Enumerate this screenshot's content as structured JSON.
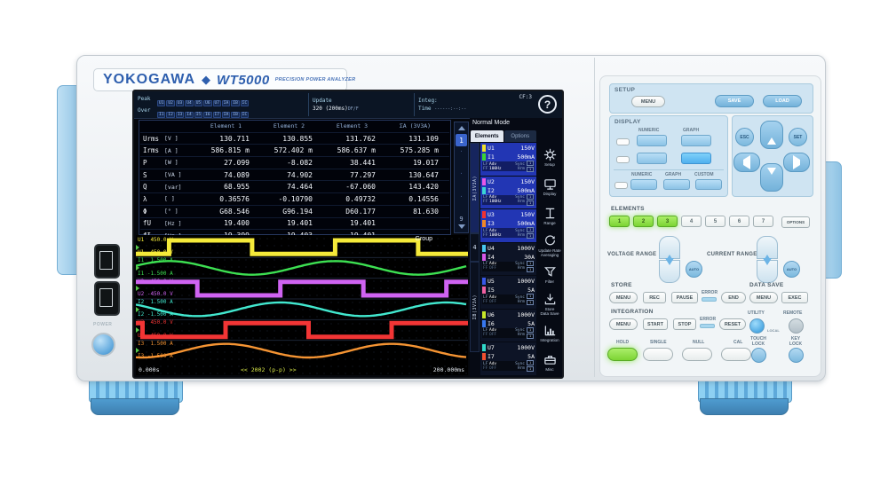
{
  "device": {
    "brand": "YOKOGAWA",
    "model": "WT5000",
    "model_desc": "PRECISION POWER ANALYZER",
    "power_label": "POWER"
  },
  "screen": {
    "status": {
      "peak_label": "Peak",
      "peak_items": [
        "U1",
        "U2",
        "U3",
        "U4",
        "U5",
        "U6",
        "U7",
        "ΣA",
        "ΣB",
        "ΣC"
      ],
      "over_label": "Over",
      "over_items": [
        "I1",
        "I2",
        "I3",
        "I4",
        "I5",
        "I6",
        "I7",
        "ΣA",
        "ΣB",
        "ΣC"
      ],
      "update_label": "Update",
      "update_value": "320 (200ms)",
      "update_suffix": "DF/F",
      "integ_label": "Integ:",
      "time_label": "Time",
      "time_value": "------:--:--",
      "cf": "CF:3",
      "help": "?"
    },
    "mode": "Normal Mode",
    "tabs": [
      {
        "label": "Elements",
        "active": true
      },
      {
        "label": "Options",
        "active": false
      }
    ],
    "pager": {
      "current": "1",
      "last": "9"
    },
    "groups": {
      "a": "ΣA(3V3A)",
      "el4": "4",
      "b": "ΣB(3V3A)"
    },
    "table": {
      "headers": [
        "Element 1",
        "Element 2",
        "Element 3",
        "ΣA (3V3A)"
      ],
      "rows": [
        {
          "name": "Urms",
          "unit": "[V  ]",
          "values": [
            "130.711",
            "130.855",
            "131.762",
            "131.109"
          ]
        },
        {
          "name": "Irms",
          "unit": "[A  ]",
          "values": [
            "586.815 m",
            "572.402 m",
            "586.637 m",
            "575.285 m"
          ]
        },
        {
          "name": "P",
          "unit": "[W  ]",
          "values": [
            "27.099",
            "-8.082",
            "38.441",
            "19.017"
          ]
        },
        {
          "name": "S",
          "unit": "[VA ]",
          "values": [
            "74.089",
            "74.902",
            "77.297",
            "130.647"
          ]
        },
        {
          "name": "Q",
          "unit": "[var]",
          "values": [
            "68.955",
            "74.464",
            "-67.060",
            "143.420"
          ]
        },
        {
          "name": "λ",
          "unit": "[   ]",
          "values": [
            "0.36576",
            "-0.10790",
            "0.49732",
            "0.14556"
          ]
        },
        {
          "name": "Φ",
          "unit": "[°  ]",
          "values": [
            "G68.546",
            "G96.194",
            "D60.177",
            "81.630"
          ]
        },
        {
          "name": "fU",
          "unit": "[Hz ]",
          "values": [
            "19.400",
            "19.401",
            "19.401",
            ""
          ]
        },
        {
          "name": "fI",
          "unit": "[Hz ]",
          "values": [
            "19.399",
            "19.403",
            "19.401",
            ""
          ]
        }
      ]
    },
    "element_labels": {
      "lf": "LF",
      "ff": "FF",
      "adv": "Adv",
      "sync": "Sync",
      "hrm": "Hrm"
    },
    "elements": [
      {
        "num": "1",
        "u": "U1",
        "u_range": "150V",
        "u_color": "#f0e12e",
        "i": "I1",
        "i_range": "500mA",
        "i_color": "#3bd435",
        "freq": "100Hz",
        "badge": "1",
        "selected": true
      },
      {
        "num": "2",
        "u": "U2",
        "u_range": "150V",
        "u_color": "#e858e8",
        "i": "I2",
        "i_range": "500mA",
        "i_color": "#3ad4d4",
        "freq": "100Hz",
        "badge": "1",
        "selected": true
      },
      {
        "num": "3",
        "u": "U3",
        "u_range": "150V",
        "u_color": "#f03232",
        "i": "I3",
        "i_range": "500mA",
        "i_color": "#f08828",
        "freq": "100Hz",
        "badge": "1",
        "selected": true
      },
      {
        "num": "4",
        "u": "U4",
        "u_range": "1000V",
        "u_color": "#48c8f0",
        "i": "I4",
        "i_range": "30A",
        "i_color": "#d858e8",
        "freq": "OFF",
        "badge": "1",
        "selected": false
      },
      {
        "num": "5",
        "u": "U5",
        "u_range": "1000V",
        "u_color": "#3858e8",
        "i": "I5",
        "i_range": "5A",
        "i_color": "#f060a0",
        "freq": "OFF",
        "badge": "1",
        "selected": false
      },
      {
        "num": "6",
        "u": "U6",
        "u_range": "1000V",
        "u_color": "#c8e828",
        "i": "I6",
        "i_range": "5A",
        "i_color": "#3878f0",
        "freq": "OFF",
        "badge": "1",
        "selected": false
      },
      {
        "num": "7",
        "u": "U7",
        "u_range": "1000V",
        "u_color": "#30d8c8",
        "i": "I7",
        "i_range": "5A",
        "i_color": "#f05030",
        "freq": "OFF",
        "badge": "1",
        "selected": false
      }
    ],
    "icon_menu": [
      {
        "icon": "gear",
        "lines": [
          "Setup"
        ]
      },
      {
        "icon": "display",
        "lines": [
          "Display"
        ]
      },
      {
        "icon": "range",
        "lines": [
          "Range"
        ]
      },
      {
        "icon": "update",
        "lines": [
          "Update Rate",
          "Averaging"
        ]
      },
      {
        "icon": "filter",
        "lines": [
          "Filter"
        ]
      },
      {
        "icon": "store",
        "lines": [
          "Store",
          "Data Save"
        ]
      },
      {
        "icon": "integration",
        "lines": [
          "Integration"
        ]
      },
      {
        "icon": "misc",
        "lines": [
          "Misc"
        ]
      }
    ],
    "waveform": {
      "group_label": "Group",
      "time_start": "0.000s",
      "time_end": "200.000ms",
      "compress": "<< 2002 (p-p) >>",
      "channels": [
        {
          "name": "U1",
          "type": "square",
          "color": "#f5ea3a",
          "label_top": "U1  450.0 V",
          "label_bottom": "U1 -450.0 V",
          "phase": 0.3,
          "cycles": 2
        },
        {
          "name": "I1",
          "type": "sine",
          "color": "#3de052",
          "label_top": "I1  1.500 A",
          "label_bottom": "I1 -1.500 A",
          "phase": 0.05,
          "cycles": 2
        },
        {
          "name": "U2",
          "type": "square",
          "color": "#cf63f2",
          "label_top": "U2  450.0 V",
          "label_bottom": "U2 -450.0 V",
          "phase": 0.63,
          "cycles": 2
        },
        {
          "name": "I2",
          "type": "sine",
          "color": "#42e8cf",
          "label_top": "I2  1.500 A",
          "label_bottom": "I2 -1.500 A",
          "phase": 0.38,
          "cycles": 2
        },
        {
          "name": "U3",
          "type": "square",
          "color": "#f23535",
          "label_top": "U3  450.0 V",
          "label_bottom": "U3 -450.0 V",
          "phase": 0.96,
          "cycles": 2
        },
        {
          "name": "I3",
          "type": "sine",
          "color": "#f59433",
          "label_top": "I3  1.500 A",
          "label_bottom": "I3 -1.500 A",
          "phase": 0.71,
          "cycles": 2
        }
      ]
    }
  },
  "panel": {
    "setup": {
      "title": "SETUP",
      "menu": "MENU",
      "save": "SAVE",
      "load": "LOAD"
    },
    "display": {
      "title": "DISPLAY",
      "numeric": "NUMERIC",
      "graph": "GRAPH",
      "custom": "CUSTOM"
    },
    "nav": {
      "esc": "ESC",
      "set": "SET"
    },
    "elements": {
      "title": "ELEMENTS",
      "buttons": [
        "1",
        "2",
        "3",
        "4",
        "5",
        "6",
        "7"
      ],
      "options": "OPTIONS",
      "lit_count": 3
    },
    "voltage_range": "VOLTAGE RANGE",
    "current_range": "CURRENT RANGE",
    "auto": "AUTO",
    "store": {
      "title": "STORE",
      "menu": "MENU",
      "rec": "REC",
      "pause": "PAUSE",
      "error": "ERROR",
      "end": "END"
    },
    "data_save": {
      "title": "DATA SAVE",
      "menu": "MENU",
      "exec": "EXEC"
    },
    "integration": {
      "title": "INTEGRATION",
      "menu": "MENU",
      "start": "START",
      "stop": "STOP",
      "error": "ERROR",
      "reset": "RESET"
    },
    "utility": "UTILITY",
    "remote": "REMOTE",
    "local": "LOCAL",
    "hold": "HOLD",
    "single": "SINGLE",
    "null": "NULL",
    "cal": "CAL",
    "touch_lock": "TOUCH\nLOCK",
    "key_lock": "KEY\nLOCK"
  }
}
